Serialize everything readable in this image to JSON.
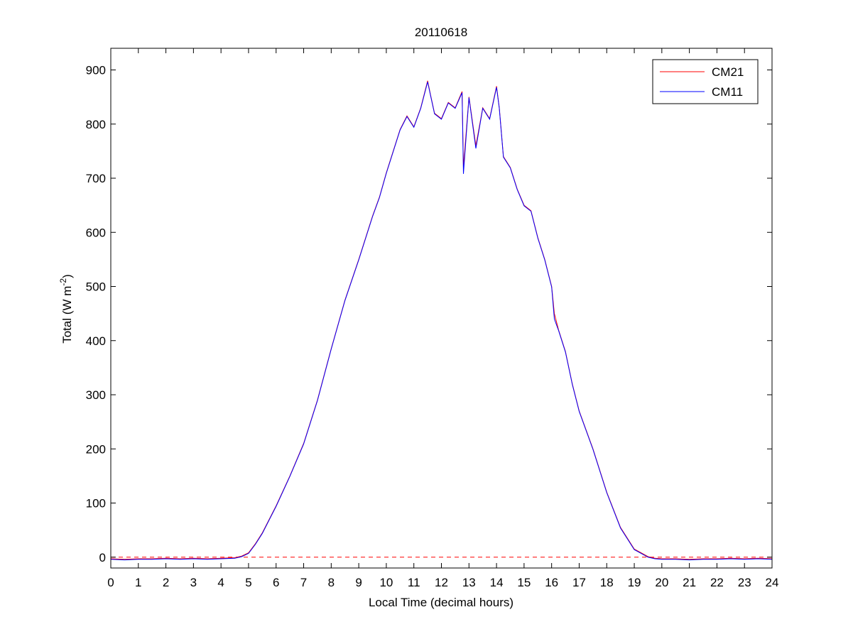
{
  "chart_data": {
    "type": "line",
    "title": "20110618",
    "xlabel": "Local Time (decimal hours)",
    "ylabel": {
      "main": "Total (W m",
      "superscript": "-2",
      "close": ")"
    },
    "xlim": [
      0,
      24
    ],
    "ylim": [
      -20,
      940
    ],
    "x_ticks": [
      0,
      1,
      2,
      3,
      4,
      5,
      6,
      7,
      8,
      9,
      10,
      11,
      12,
      13,
      14,
      15,
      16,
      17,
      18,
      19,
      20,
      21,
      22,
      23,
      24
    ],
    "y_ticks": [
      0,
      100,
      200,
      300,
      400,
      500,
      600,
      700,
      800,
      900
    ],
    "grid": false,
    "legend_position": "top-right",
    "reference_line": {
      "y": 0,
      "style": "dashed",
      "color": "#ff0000"
    },
    "x": [
      0,
      0.5,
      1,
      1.5,
      2,
      2.5,
      3,
      3.5,
      4,
      4.5,
      4.75,
      5,
      5.25,
      5.5,
      5.75,
      6,
      6.5,
      7,
      7.5,
      8,
      8.5,
      9,
      9.25,
      9.5,
      9.75,
      10,
      10.25,
      10.5,
      10.75,
      11,
      11.25,
      11.5,
      11.6,
      11.75,
      12,
      12.25,
      12.5,
      12.75,
      12.8,
      13,
      13.25,
      13.5,
      13.75,
      14,
      14.1,
      14.25,
      14.5,
      14.75,
      15,
      15.25,
      15.5,
      15.75,
      16,
      16.1,
      16.25,
      16.5,
      16.75,
      17,
      17.5,
      18,
      18.5,
      19,
      19.5,
      19.75,
      20,
      20.5,
      21,
      21.5,
      22,
      22.5,
      23,
      23.5,
      24
    ],
    "series": [
      {
        "name": "CM21",
        "color": "#ff0000",
        "values": [
          -3,
          -4,
          -3,
          -3,
          -2,
          -3,
          -2,
          -3,
          -2,
          -1,
          2,
          8,
          25,
          45,
          70,
          95,
          150,
          210,
          290,
          385,
          475,
          550,
          590,
          630,
          665,
          710,
          750,
          790,
          815,
          795,
          830,
          880,
          855,
          820,
          810,
          840,
          830,
          860,
          720,
          850,
          760,
          830,
          810,
          870,
          830,
          740,
          720,
          680,
          650,
          640,
          590,
          550,
          500,
          450,
          420,
          380,
          320,
          270,
          200,
          120,
          55,
          15,
          1,
          -2,
          -3,
          -3,
          -4,
          -3,
          -3,
          -2,
          -3,
          -2,
          -3
        ]
      },
      {
        "name": "CM11",
        "color": "#0000ff",
        "values": [
          -4,
          -5,
          -4,
          -4,
          -3,
          -4,
          -3,
          -4,
          -3,
          -2,
          1,
          7,
          24,
          44,
          69,
          94,
          149,
          209,
          289,
          384,
          474,
          549,
          589,
          629,
          664,
          709,
          749,
          789,
          814,
          794,
          829,
          878,
          854,
          819,
          809,
          839,
          829,
          858,
          708,
          849,
          755,
          829,
          809,
          868,
          829,
          739,
          719,
          679,
          649,
          639,
          589,
          549,
          499,
          440,
          419,
          379,
          319,
          269,
          199,
          119,
          54,
          14,
          0,
          -3,
          -4,
          -4,
          -5,
          -4,
          -4,
          -3,
          -4,
          -3,
          -4
        ]
      }
    ]
  }
}
